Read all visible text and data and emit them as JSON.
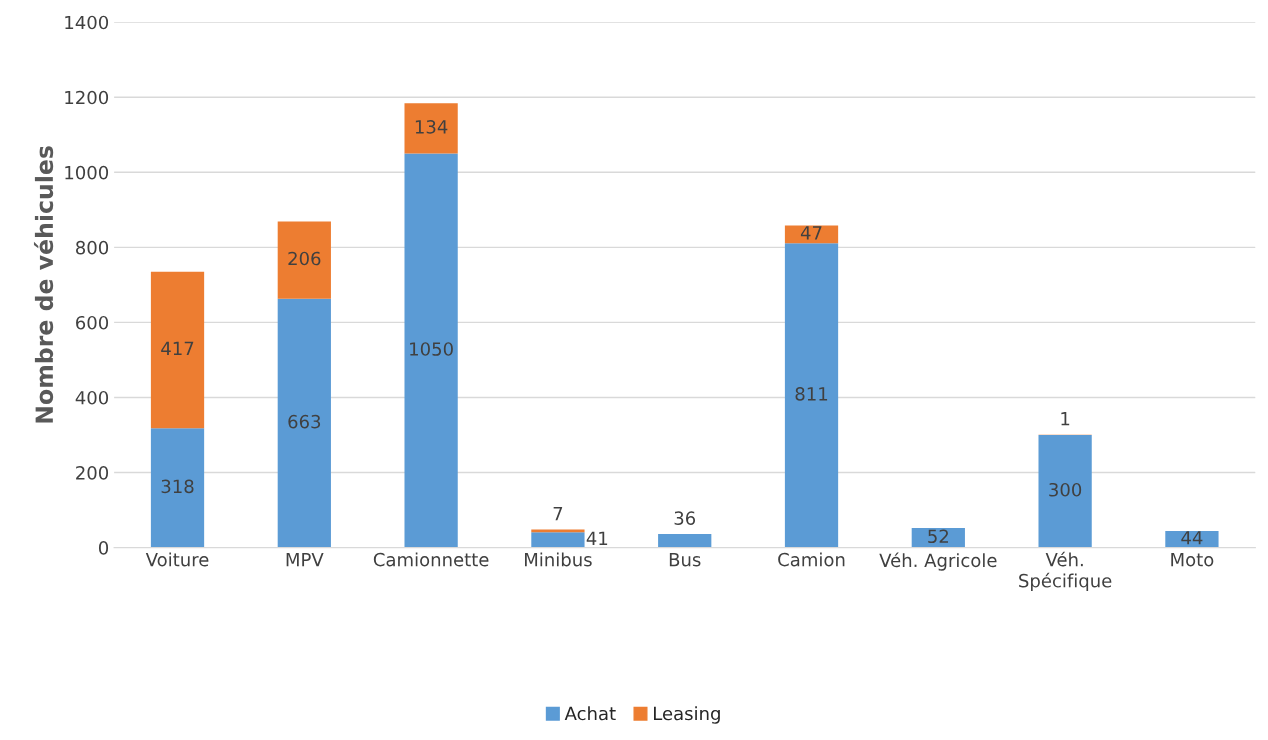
{
  "chart_data": {
    "type": "bar",
    "stacked": true,
    "ylabel": "Nombre de véhicules",
    "categories": [
      "Voiture",
      "MPV",
      "Camionnette",
      "Minibus",
      "Bus",
      "Camion",
      "Véh. Agricole",
      "Véh.\nSpécifique",
      "Moto"
    ],
    "series": [
      {
        "name": "Achat",
        "color": "#5b9bd5",
        "values": [
          318,
          663,
          1050,
          41,
          36,
          811,
          52,
          300,
          44
        ]
      },
      {
        "name": "Leasing",
        "color": "#ed7d31",
        "values": [
          417,
          206,
          134,
          7,
          null,
          47,
          null,
          1,
          null
        ]
      }
    ],
    "data_labels": true,
    "ylim": [
      0,
      1400
    ],
    "yticks": [
      0,
      200,
      400,
      600,
      800,
      1000,
      1200,
      1400
    ],
    "grid": "y",
    "legend": "bottom"
  }
}
